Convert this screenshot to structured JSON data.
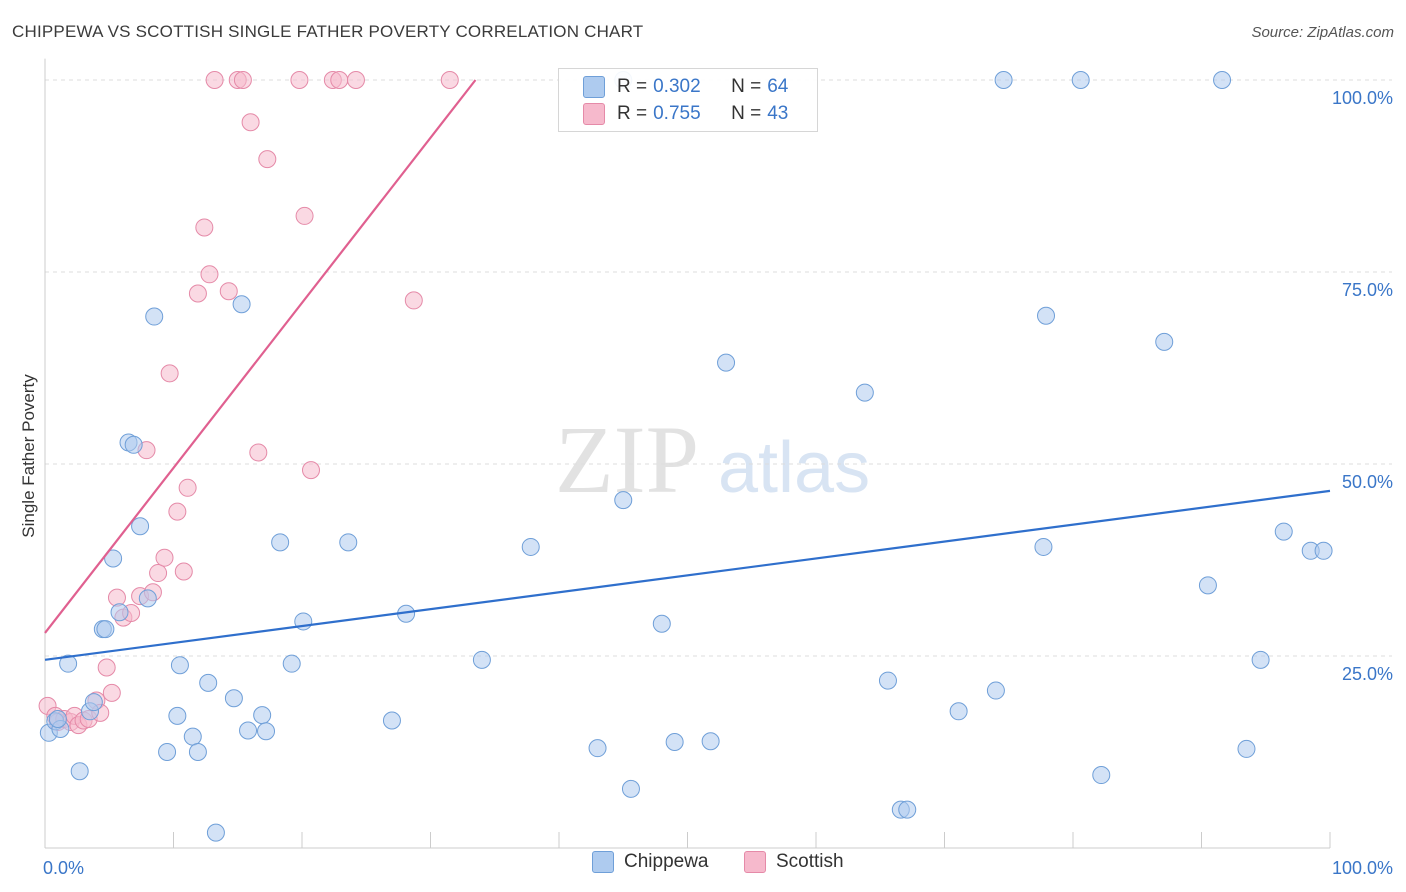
{
  "header": {
    "title": "CHIPPEWA VS SCOTTISH SINGLE FATHER POVERTY CORRELATION CHART",
    "source": "Source: ZipAtlas.com"
  },
  "watermark": {
    "zip": "ZIP",
    "atlas": "atlas"
  },
  "legend": {
    "rows": [
      {
        "series": "Chippewa",
        "r_label": "R =",
        "r_value": "0.302",
        "n_label": "N =",
        "n_value": "64"
      },
      {
        "series": "Scottish",
        "r_label": "R =",
        "r_value": "0.755",
        "n_label": "N =",
        "n_value": "43"
      }
    ]
  },
  "colors": {
    "chippewa_fill": "#aecbef",
    "chippewa_stroke": "#6f9fd8",
    "chippewa_line": "#2f6fcc",
    "scottish_fill": "#f6b9cc",
    "scottish_stroke": "#e58aa8",
    "scottish_line": "#e06090",
    "axis_label": "#3a76c8",
    "grid": "#dddddd"
  },
  "chart_data": {
    "type": "scatter",
    "title": "CHIPPEWA VS SCOTTISH SINGLE FATHER POVERTY CORRELATION CHART",
    "xlabel": "",
    "ylabel": "Single Father Poverty",
    "xlim": [
      0,
      100
    ],
    "ylim": [
      0,
      102
    ],
    "x_tick_labels": [
      "0.0%",
      "100.0%"
    ],
    "y_ticks": [
      25,
      50,
      75,
      100
    ],
    "y_tick_labels": [
      "25.0%",
      "50.0%",
      "75.0%",
      "100.0%"
    ],
    "grid": "horizontal dashed",
    "legend_position": "top-center",
    "series": [
      {
        "name": "Chippewa",
        "trend": {
          "x": [
            0,
            100
          ],
          "y": [
            24.5,
            46.5
          ]
        },
        "points": [
          {
            "x": 0.3,
            "y": 15.0
          },
          {
            "x": 0.8,
            "y": 16.5
          },
          {
            "x": 1.2,
            "y": 15.5
          },
          {
            "x": 1.8,
            "y": 24.0
          },
          {
            "x": 2.7,
            "y": 10.0
          },
          {
            "x": 3.5,
            "y": 17.8
          },
          {
            "x": 3.8,
            "y": 19.0
          },
          {
            "x": 4.5,
            "y": 28.5
          },
          {
            "x": 4.7,
            "y": 28.5
          },
          {
            "x": 5.3,
            "y": 37.7
          },
          {
            "x": 5.8,
            "y": 30.7
          },
          {
            "x": 6.5,
            "y": 52.8
          },
          {
            "x": 6.9,
            "y": 52.5
          },
          {
            "x": 7.4,
            "y": 41.9
          },
          {
            "x": 8.0,
            "y": 32.5
          },
          {
            "x": 8.5,
            "y": 69.2
          },
          {
            "x": 9.5,
            "y": 12.5
          },
          {
            "x": 10.3,
            "y": 17.2
          },
          {
            "x": 10.5,
            "y": 23.8
          },
          {
            "x": 11.5,
            "y": 14.5
          },
          {
            "x": 11.9,
            "y": 12.5
          },
          {
            "x": 12.7,
            "y": 21.5
          },
          {
            "x": 13.3,
            "y": 2.0
          },
          {
            "x": 14.7,
            "y": 19.5
          },
          {
            "x": 15.3,
            "y": 70.8
          },
          {
            "x": 15.8,
            "y": 15.3
          },
          {
            "x": 16.9,
            "y": 17.3
          },
          {
            "x": 17.2,
            "y": 15.2
          },
          {
            "x": 18.3,
            "y": 39.8
          },
          {
            "x": 19.2,
            "y": 24.0
          },
          {
            "x": 20.1,
            "y": 29.5
          },
          {
            "x": 23.6,
            "y": 39.8
          },
          {
            "x": 27.0,
            "y": 16.6
          },
          {
            "x": 28.1,
            "y": 30.5
          },
          {
            "x": 34.0,
            "y": 24.5
          },
          {
            "x": 37.8,
            "y": 39.2
          },
          {
            "x": 43.0,
            "y": 13.0
          },
          {
            "x": 45.0,
            "y": 45.3
          },
          {
            "x": 45.6,
            "y": 7.7
          },
          {
            "x": 48.0,
            "y": 29.2
          },
          {
            "x": 49.0,
            "y": 13.8
          },
          {
            "x": 51.8,
            "y": 13.9
          },
          {
            "x": 53.0,
            "y": 63.2
          },
          {
            "x": 63.8,
            "y": 59.3
          },
          {
            "x": 65.6,
            "y": 21.8
          },
          {
            "x": 66.6,
            "y": 5.0
          },
          {
            "x": 67.1,
            "y": 5.0
          },
          {
            "x": 71.1,
            "y": 17.8
          },
          {
            "x": 74.0,
            "y": 20.5
          },
          {
            "x": 74.6,
            "y": 100.0
          },
          {
            "x": 77.7,
            "y": 39.2
          },
          {
            "x": 77.9,
            "y": 69.3
          },
          {
            "x": 80.6,
            "y": 100.0
          },
          {
            "x": 82.2,
            "y": 9.5
          },
          {
            "x": 87.1,
            "y": 65.9
          },
          {
            "x": 90.5,
            "y": 34.2
          },
          {
            "x": 91.6,
            "y": 100.0
          },
          {
            "x": 93.5,
            "y": 12.9
          },
          {
            "x": 94.6,
            "y": 24.5
          },
          {
            "x": 96.4,
            "y": 41.2
          },
          {
            "x": 98.5,
            "y": 38.7
          },
          {
            "x": 99.5,
            "y": 38.7
          },
          {
            "x": 45.0,
            "y": 100.0
          },
          {
            "x": 1.0,
            "y": 16.8
          }
        ]
      },
      {
        "name": "Scottish",
        "trend": {
          "x": [
            0,
            33.5
          ],
          "y": [
            28.0,
            100.0
          ]
        },
        "points": [
          {
            "x": 0.2,
            "y": 18.5
          },
          {
            "x": 0.8,
            "y": 17.2
          },
          {
            "x": 1.0,
            "y": 16.4
          },
          {
            "x": 1.5,
            "y": 16.8
          },
          {
            "x": 2.0,
            "y": 16.4
          },
          {
            "x": 2.3,
            "y": 17.2
          },
          {
            "x": 2.6,
            "y": 16.0
          },
          {
            "x": 3.0,
            "y": 16.6
          },
          {
            "x": 3.4,
            "y": 16.8
          },
          {
            "x": 4.0,
            "y": 19.2
          },
          {
            "x": 4.3,
            "y": 17.6
          },
          {
            "x": 4.8,
            "y": 23.5
          },
          {
            "x": 5.2,
            "y": 20.2
          },
          {
            "x": 5.6,
            "y": 32.6
          },
          {
            "x": 6.1,
            "y": 30.0
          },
          {
            "x": 6.7,
            "y": 30.6
          },
          {
            "x": 7.4,
            "y": 32.8
          },
          {
            "x": 7.9,
            "y": 51.8
          },
          {
            "x": 8.4,
            "y": 33.3
          },
          {
            "x": 8.8,
            "y": 35.8
          },
          {
            "x": 9.3,
            "y": 37.8
          },
          {
            "x": 9.7,
            "y": 61.8
          },
          {
            "x": 10.3,
            "y": 43.8
          },
          {
            "x": 10.8,
            "y": 36.0
          },
          {
            "x": 11.1,
            "y": 46.9
          },
          {
            "x": 11.9,
            "y": 72.2
          },
          {
            "x": 12.4,
            "y": 80.8
          },
          {
            "x": 12.8,
            "y": 74.7
          },
          {
            "x": 13.2,
            "y": 100.0
          },
          {
            "x": 14.3,
            "y": 72.5
          },
          {
            "x": 15.0,
            "y": 100.0
          },
          {
            "x": 15.4,
            "y": 100.0
          },
          {
            "x": 16.0,
            "y": 94.5
          },
          {
            "x": 16.6,
            "y": 51.5
          },
          {
            "x": 17.3,
            "y": 89.7
          },
          {
            "x": 19.8,
            "y": 100.0
          },
          {
            "x": 20.2,
            "y": 82.3
          },
          {
            "x": 20.7,
            "y": 49.2
          },
          {
            "x": 22.4,
            "y": 100.0
          },
          {
            "x": 22.9,
            "y": 100.0
          },
          {
            "x": 24.2,
            "y": 100.0
          },
          {
            "x": 28.7,
            "y": 71.3
          },
          {
            "x": 31.5,
            "y": 100.0
          }
        ]
      }
    ]
  }
}
